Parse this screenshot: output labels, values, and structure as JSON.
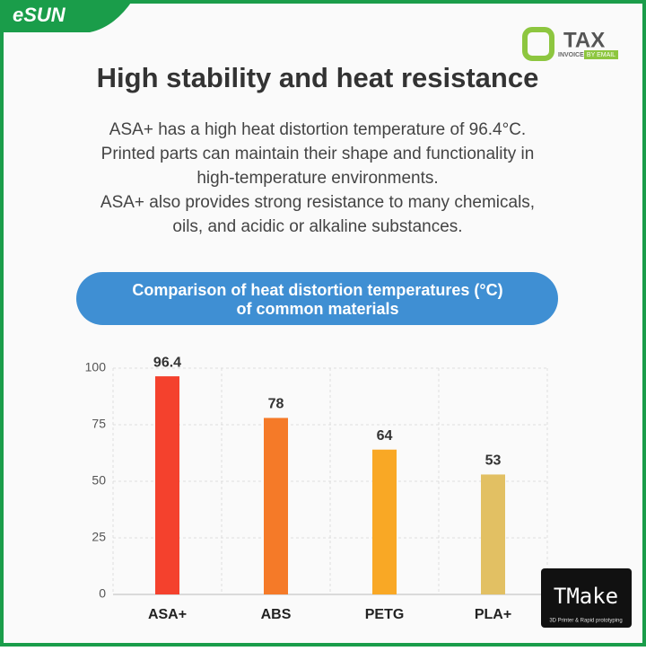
{
  "brand": "eSUN",
  "badge": {
    "mark": "TAX",
    "line1": "INVOICE",
    "line2": "BY EMAIL"
  },
  "headline": "High stability and heat resistance",
  "paragraph": [
    "ASA+ has a high heat distortion temperature of 96.4°C.",
    "Printed parts can maintain their shape and functionality in",
    "high-temperature environments.",
    "ASA+ also provides strong resistance to many chemicals,",
    "oils, and acidic or alkaline substances."
  ],
  "watermark": {
    "name": "TMake",
    "tagline": "3D Printer & Rapid prototyping"
  },
  "chart_data": {
    "type": "bar",
    "title": [
      "Comparison of heat distortion temperatures (°C)",
      "of common materials"
    ],
    "categories": [
      "ASA+",
      "ABS",
      "PETG",
      "PLA+"
    ],
    "values": [
      96.4,
      78,
      64,
      53
    ],
    "colors": [
      "#f4412d",
      "#f57a28",
      "#f9a825",
      "#e2c063"
    ],
    "ylim": [
      0,
      100
    ],
    "yticks": [
      0,
      25,
      50,
      75,
      100
    ],
    "grid": true
  }
}
